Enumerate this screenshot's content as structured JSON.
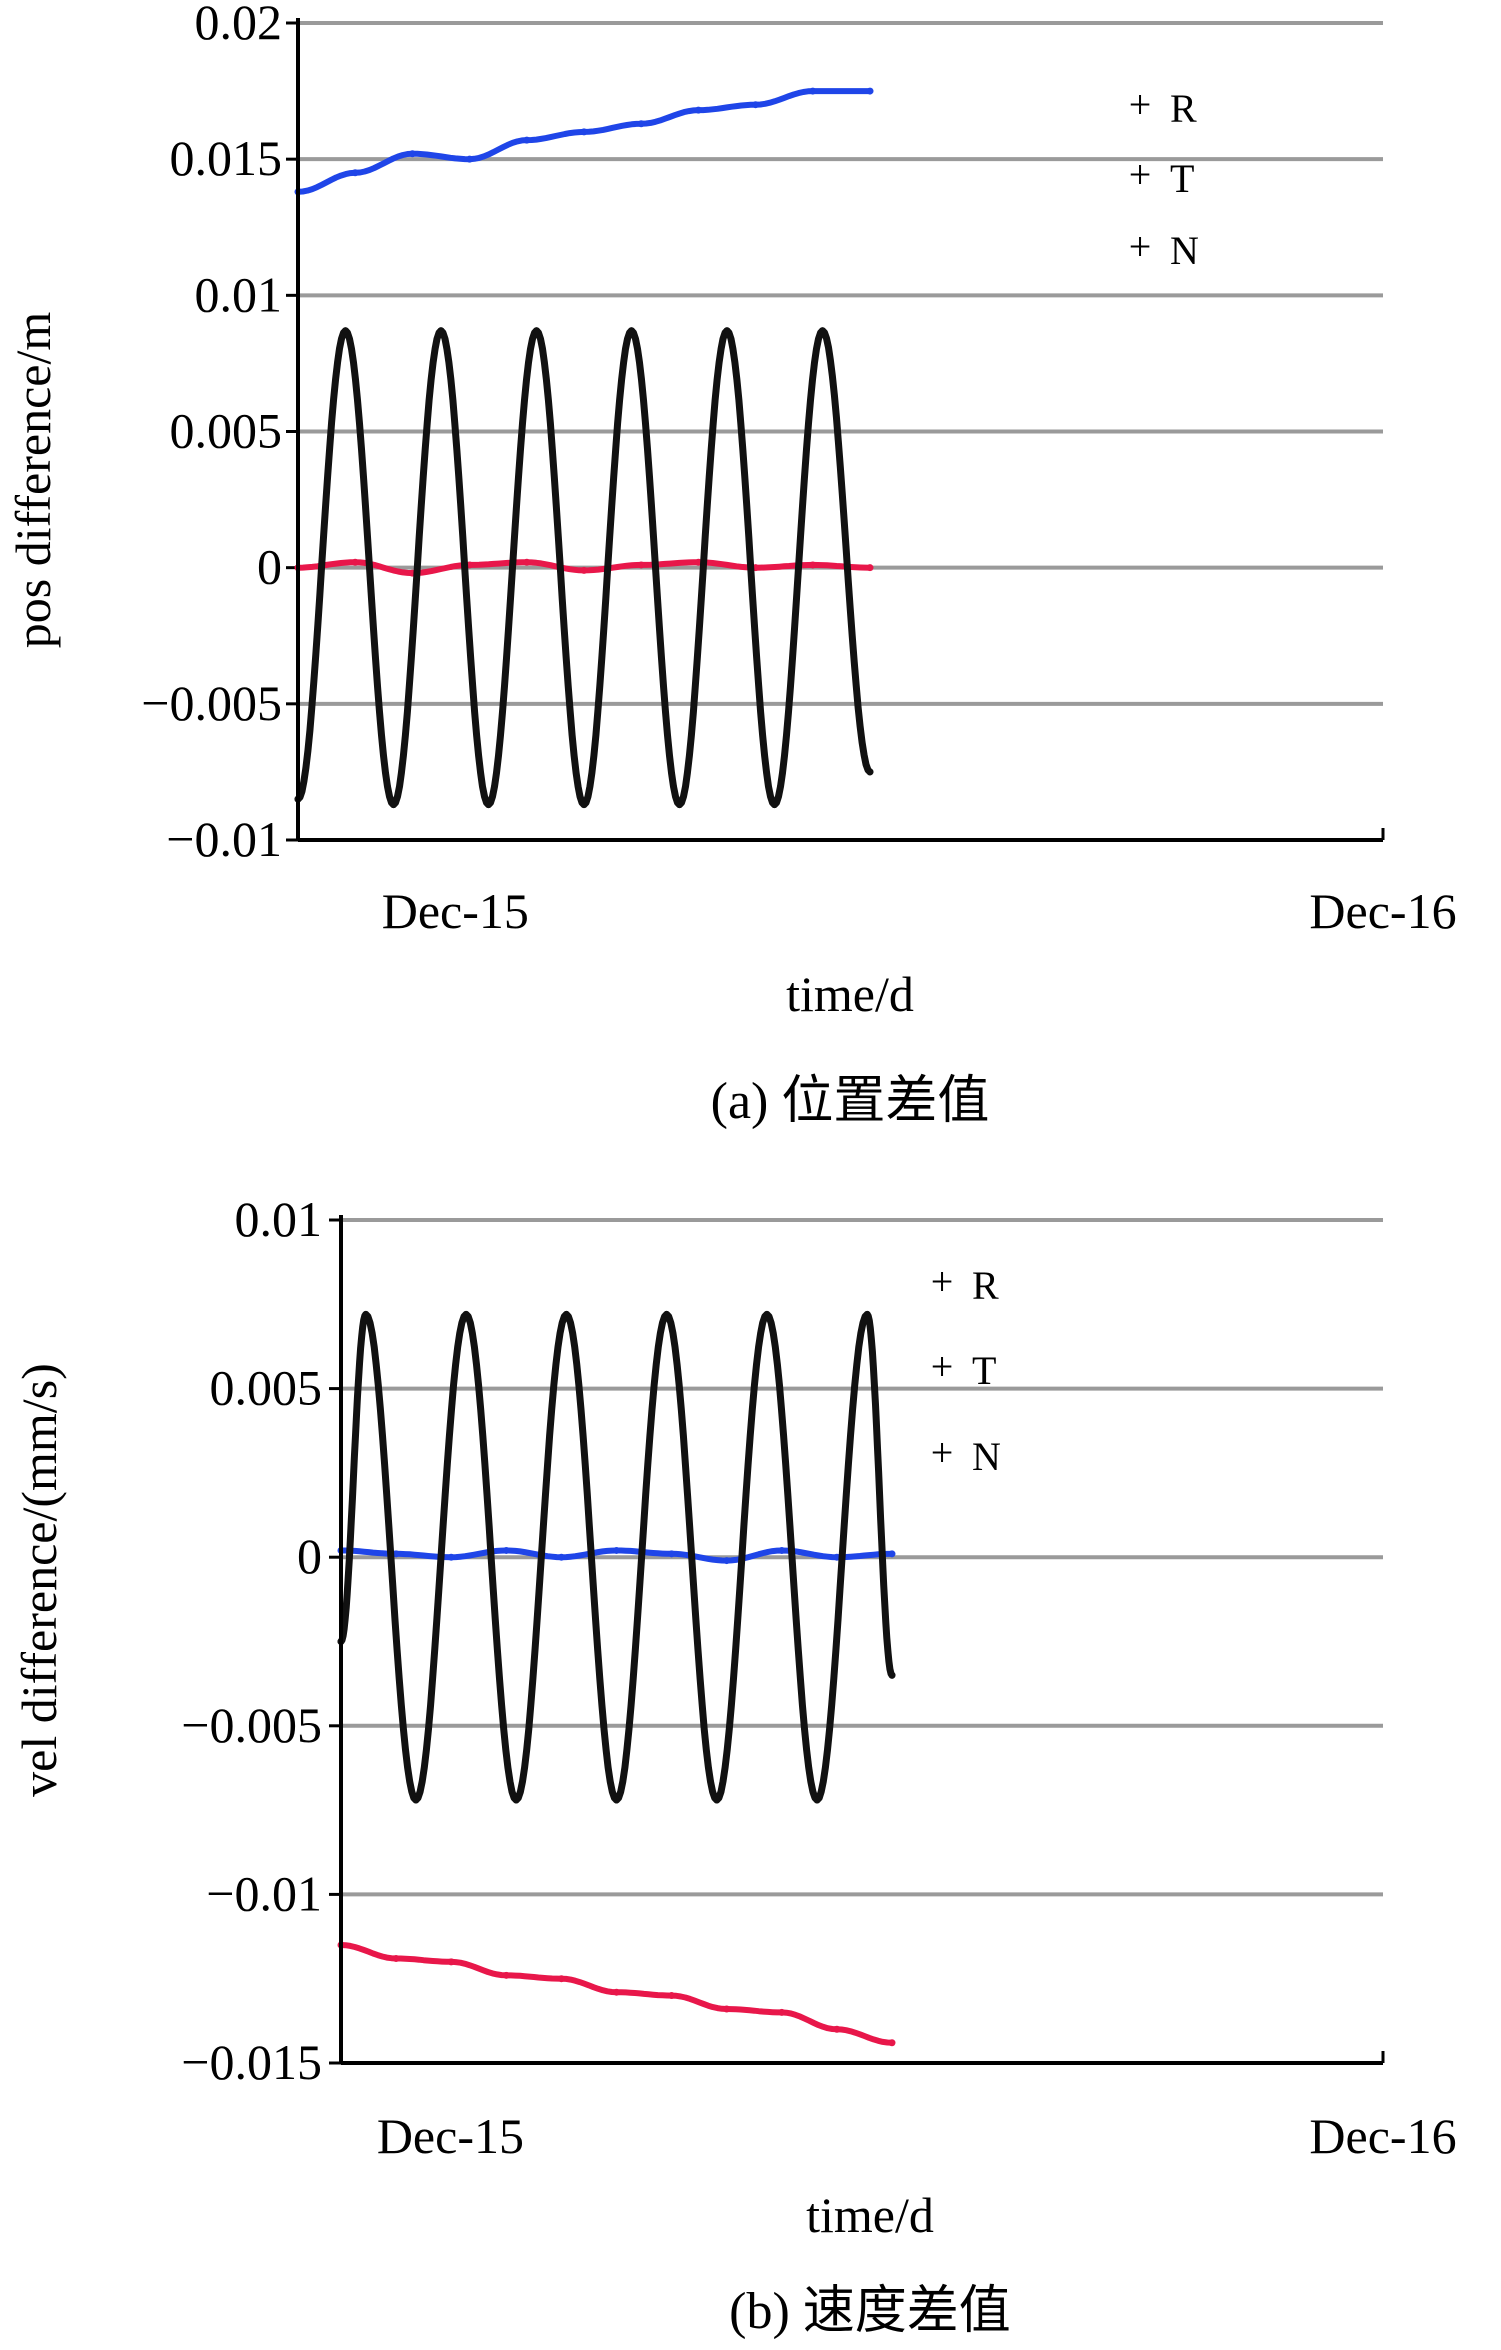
{
  "chart_data": [
    {
      "type": "line",
      "caption": "(a) 位置差值",
      "xlabel": "time/d",
      "ylabel": "pos difference/m",
      "x_ticks": [
        "Dec-15",
        "Dec-16"
      ],
      "y_ticks": [
        "0.02",
        "0.015",
        "0.01",
        "0.005",
        "0",
        "−0.005",
        "−0.01"
      ],
      "ylim": [
        -0.01,
        0.02
      ],
      "grid": true,
      "legend_position": "top-right",
      "series": [
        {
          "name": "R",
          "color": "#e8174a",
          "x": [
            0,
            0.1,
            0.2,
            0.3,
            0.4,
            0.5,
            0.6,
            0.7,
            0.8,
            0.9,
            1.0
          ],
          "y": [
            0,
            0.0002,
            -0.0002,
            0.0001,
            0.0002,
            -0.0001,
            0.0001,
            0.0002,
            0,
            0.0001,
            0
          ]
        },
        {
          "name": "T",
          "color": "#1f45e8",
          "x": [
            0,
            0.1,
            0.2,
            0.3,
            0.4,
            0.5,
            0.6,
            0.7,
            0.8,
            0.9,
            1.0
          ],
          "y": [
            0.0138,
            0.0145,
            0.0152,
            0.015,
            0.0157,
            0.016,
            0.0163,
            0.0168,
            0.017,
            0.0175,
            0.0175
          ]
        },
        {
          "name": "N",
          "color": "#111111",
          "x": [
            0,
            0.083,
            0.167,
            0.25,
            0.333,
            0.417,
            0.5,
            0.583,
            0.667,
            0.75,
            0.833,
            0.917,
            1.0
          ],
          "y": [
            -0.0085,
            0.0087,
            -0.0087,
            0.0087,
            -0.0087,
            0.0087,
            -0.0087,
            0.0087,
            -0.0087,
            0.0087,
            -0.0087,
            0.0087,
            -0.0075
          ]
        }
      ]
    },
    {
      "type": "line",
      "caption": "(b) 速度差值",
      "xlabel": "time/d",
      "ylabel": "vel difference/(mm/s)",
      "x_ticks": [
        "Dec-15",
        "Dec-16"
      ],
      "y_ticks": [
        "0.01",
        "0.005",
        "0",
        "−0.005",
        "−0.01",
        "−0.015"
      ],
      "ylim": [
        -0.015,
        0.01
      ],
      "grid": true,
      "legend_position": "top-right",
      "series": [
        {
          "name": "R",
          "color": "#e8174a",
          "x": [
            0,
            0.1,
            0.2,
            0.3,
            0.4,
            0.5,
            0.6,
            0.7,
            0.8,
            0.9,
            1.0
          ],
          "y": [
            -0.0115,
            -0.0119,
            -0.012,
            -0.0124,
            -0.0125,
            -0.0129,
            -0.013,
            -0.0134,
            -0.0135,
            -0.014,
            -0.0144
          ]
        },
        {
          "name": "T",
          "color": "#1f45e8",
          "x": [
            0,
            0.1,
            0.2,
            0.3,
            0.4,
            0.5,
            0.6,
            0.7,
            0.8,
            0.9,
            1.0
          ],
          "y": [
            0.0002,
            0.0001,
            0,
            0.0002,
            0,
            0.0002,
            0.0001,
            -0.0001,
            0.0002,
            0,
            0.0001
          ]
        },
        {
          "name": "N",
          "color": "#111111",
          "x": [
            0,
            0.045,
            0.136,
            0.227,
            0.318,
            0.409,
            0.5,
            0.591,
            0.682,
            0.773,
            0.864,
            0.955,
            1.0
          ],
          "y": [
            -0.0025,
            0.0072,
            -0.0072,
            0.0072,
            -0.0072,
            0.0072,
            -0.0072,
            0.0072,
            -0.0072,
            0.0072,
            -0.0072,
            0.0072,
            -0.0035
          ]
        }
      ]
    }
  ]
}
